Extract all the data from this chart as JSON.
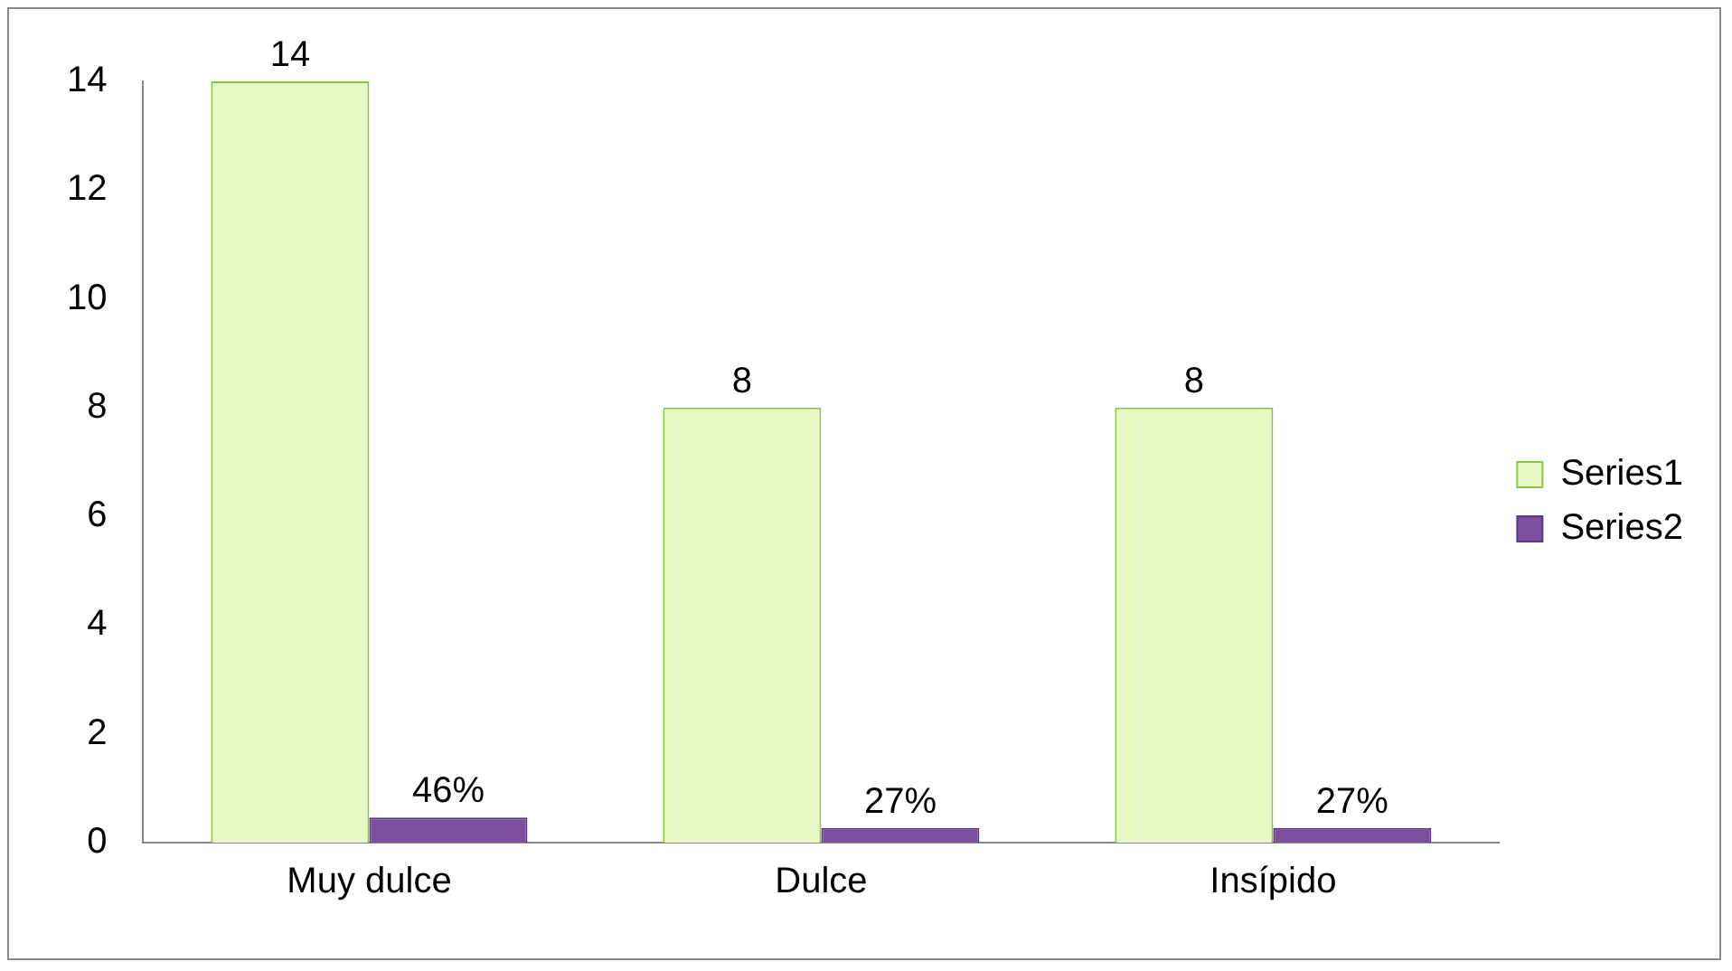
{
  "chart_data": {
    "type": "bar",
    "categories": [
      "Muy dulce",
      "Dulce",
      "Insípido"
    ],
    "series": [
      {
        "name": "Series1",
        "color": "#e8f8c4",
        "values": [
          14,
          8,
          8
        ],
        "value_labels": [
          "14",
          "8",
          "8"
        ]
      },
      {
        "name": "Series2",
        "color": "#7b4f9e",
        "values": [
          0.46,
          0.27,
          0.27
        ],
        "value_labels": [
          "46%",
          "27%",
          "27%"
        ]
      }
    ],
    "ylim": [
      0,
      14
    ],
    "yticks": [
      0,
      2,
      4,
      6,
      8,
      10,
      12,
      14
    ],
    "grid": false,
    "legend": "right"
  }
}
